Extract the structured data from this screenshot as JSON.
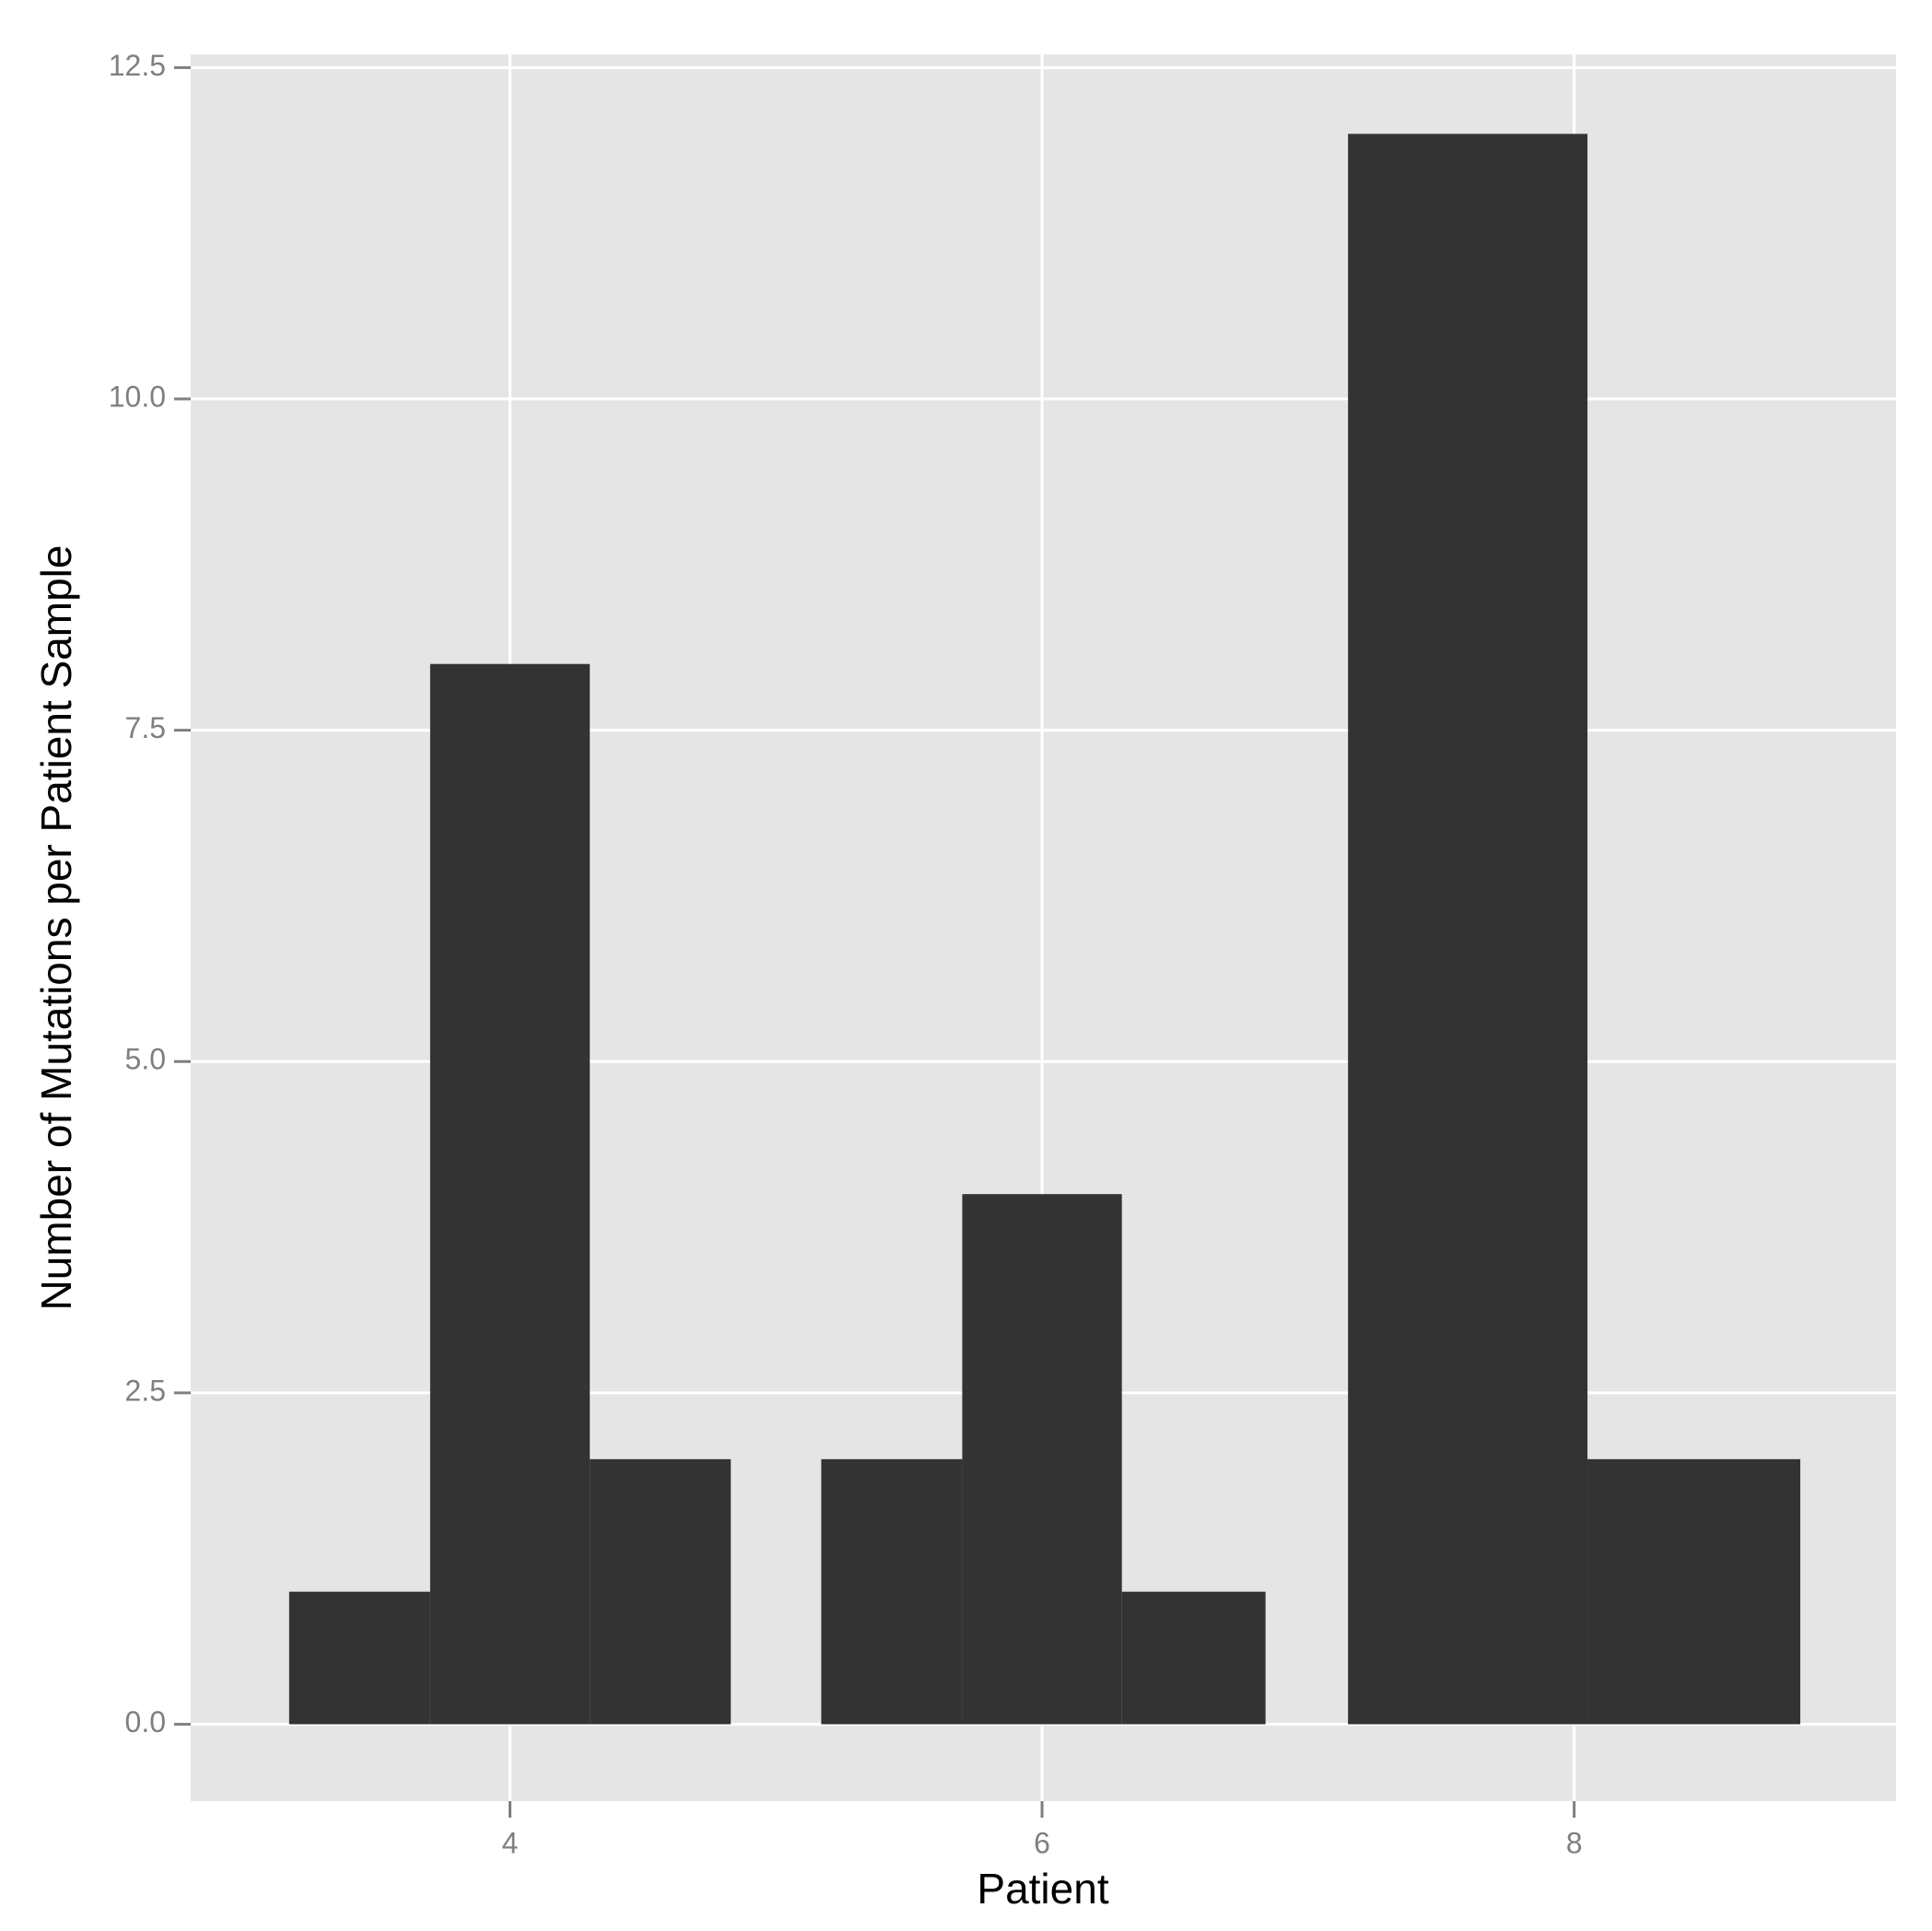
{
  "chart_data": {
    "type": "histogram",
    "x_label": "Patient",
    "y_label": "Number of Mutations per Patient Sample",
    "bins": [
      3.17,
      3.7,
      4.3,
      4.83,
      5.17,
      5.7,
      6.3,
      6.84,
      7.15,
      8.05,
      8.85
    ],
    "values": [
      1,
      8,
      2,
      0,
      2,
      4,
      1,
      0,
      12,
      2
    ],
    "color": "#333333",
    "xlim": [
      2.8,
      9.21
    ],
    "xticks": [
      4,
      6,
      8
    ],
    "ylim": [
      -0.58,
      12.6
    ],
    "yticks": [
      {
        "value": 0,
        "label": "0.0"
      },
      {
        "value": 2.5,
        "label": "2.5"
      },
      {
        "value": 5,
        "label": "5.0"
      },
      {
        "value": 7.5,
        "label": "7.5"
      },
      {
        "value": 10,
        "label": "10.0"
      },
      {
        "value": 12.5,
        "label": "12.5"
      }
    ],
    "grid": true,
    "panel_color": "#e5e5e5"
  }
}
